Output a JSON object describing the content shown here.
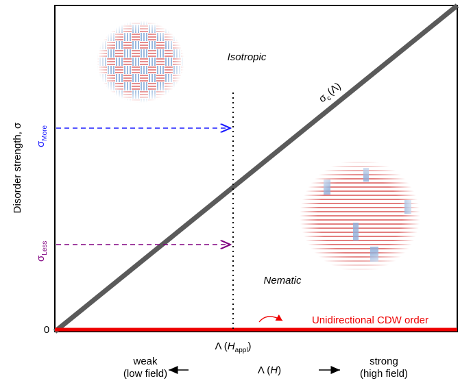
{
  "phases": {
    "isotropic": "Isotropic",
    "nematic": "Nematic"
  },
  "critical_line": {
    "symbol": "σ",
    "sub": "c",
    "arg": "(Λ)"
  },
  "y_axis": {
    "label": "Disorder strength, σ",
    "zero": "0",
    "sigma_more": {
      "symbol": "σ",
      "sub": "More"
    },
    "sigma_less": {
      "symbol": "σ",
      "sub": "Less"
    }
  },
  "cdw_label": "Unidirectional CDW order",
  "applied_field": {
    "symbol": "Λ (",
    "var": "H",
    "sub": "appl",
    "close": ")"
  },
  "x_axis": {
    "symbol": "Λ (",
    "var": "H",
    "close": ")",
    "weak": [
      "weak",
      "(low field)"
    ],
    "strong": [
      "strong",
      "(high field)"
    ]
  }
}
